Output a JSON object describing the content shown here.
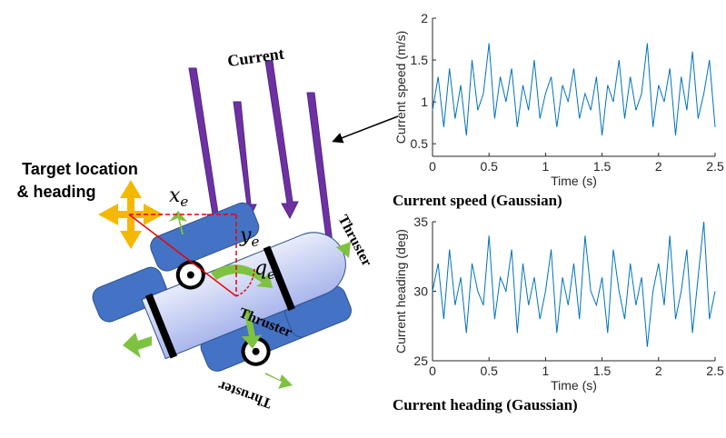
{
  "diagram": {
    "current": "Current",
    "target_line1": "Target location",
    "target_line2": "& heading",
    "xe": {
      "main": "x",
      "sub": "e"
    },
    "ye": {
      "main": "y",
      "sub": "e"
    },
    "qe": {
      "main": "q",
      "sub": "e"
    },
    "thruster_right": "Thruster",
    "thruster_center": "Thruster",
    "thruster_bottom": "Thruster"
  },
  "chart_data": [
    {
      "type": "line",
      "caption": "Current speed (Gaussian)",
      "xlabel": "Time (s)",
      "ylabel": "Current speed (m/s)",
      "xlim": [
        0,
        2.5
      ],
      "ylim": [
        0.35,
        2
      ],
      "xticks": [
        0,
        0.5,
        1,
        1.5,
        2,
        2.5
      ],
      "yticks": [
        0.5,
        1,
        1.5,
        2
      ],
      "x": [
        0,
        0.05,
        0.1,
        0.15,
        0.2,
        0.25,
        0.3,
        0.35,
        0.4,
        0.45,
        0.5,
        0.55,
        0.6,
        0.65,
        0.7,
        0.75,
        0.8,
        0.85,
        0.9,
        0.95,
        1,
        1.05,
        1.1,
        1.15,
        1.2,
        1.25,
        1.3,
        1.35,
        1.4,
        1.45,
        1.5,
        1.55,
        1.6,
        1.65,
        1.7,
        1.75,
        1.8,
        1.85,
        1.9,
        1.95,
        2,
        2.05,
        2.1,
        2.15,
        2.2,
        2.25,
        2.3,
        2.35,
        2.4,
        2.45,
        2.5
      ],
      "series": [
        {
          "color": "#0072bd",
          "values": [
            0.9,
            1.3,
            0.7,
            1.4,
            0.8,
            1.2,
            0.6,
            1.5,
            0.9,
            1.1,
            1.7,
            0.8,
            1.3,
            1.0,
            1.4,
            0.7,
            1.2,
            0.9,
            1.5,
            0.8,
            1.1,
            1.3,
            0.7,
            1.2,
            1.0,
            1.4,
            0.8,
            1.1,
            0.9,
            1.3,
            0.6,
            1.2,
            1.0,
            1.5,
            0.8,
            1.3,
            0.9,
            1.1,
            1.7,
            0.7,
            1.2,
            1.0,
            1.4,
            0.6,
            1.3,
            0.9,
            1.6,
            0.8,
            1.1,
            1.5,
            0.7
          ]
        }
      ]
    },
    {
      "type": "line",
      "caption": "Current heading (Gaussian)",
      "xlabel": "Time (s)",
      "ylabel": "Current heading (deg)",
      "xlim": [
        0,
        2.5
      ],
      "ylim": [
        25,
        35
      ],
      "xticks": [
        0,
        0.5,
        1,
        1.5,
        2,
        2.5
      ],
      "yticks": [
        25,
        30,
        35
      ],
      "x": [
        0,
        0.05,
        0.1,
        0.15,
        0.2,
        0.25,
        0.3,
        0.35,
        0.4,
        0.45,
        0.5,
        0.55,
        0.6,
        0.65,
        0.7,
        0.75,
        0.8,
        0.85,
        0.9,
        0.95,
        1,
        1.05,
        1.1,
        1.15,
        1.2,
        1.25,
        1.3,
        1.35,
        1.4,
        1.45,
        1.5,
        1.55,
        1.6,
        1.65,
        1.7,
        1.75,
        1.8,
        1.85,
        1.9,
        1.95,
        2,
        2.05,
        2.1,
        2.15,
        2.2,
        2.25,
        2.3,
        2.35,
        2.4,
        2.45,
        2.5
      ],
      "series": [
        {
          "color": "#0072bd",
          "values": [
            30,
            32,
            28,
            33,
            29,
            31,
            27,
            32,
            30,
            29,
            34,
            28,
            31,
            30,
            33,
            27,
            32,
            29,
            31,
            28,
            30,
            33,
            27,
            31,
            29,
            32,
            28,
            34,
            30,
            29,
            31,
            27,
            33,
            30,
            28,
            32,
            29,
            31,
            26,
            30,
            32,
            29,
            34,
            28,
            30,
            33,
            27,
            31,
            35,
            28,
            30
          ]
        }
      ]
    }
  ]
}
